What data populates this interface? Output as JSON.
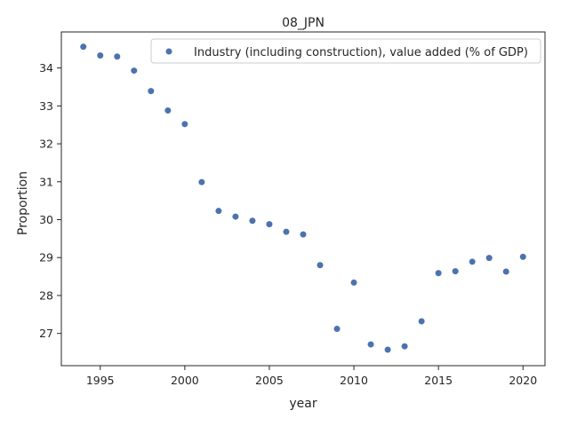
{
  "chart_data": {
    "type": "scatter",
    "title": "08_JPN",
    "xlabel": "year",
    "ylabel": "Proportion",
    "xlim": [
      1992.7,
      2021.3
    ],
    "ylim": [
      26.15,
      34.95
    ],
    "xticks": [
      1995,
      2000,
      2005,
      2010,
      2015,
      2020
    ],
    "yticks": [
      27,
      28,
      29,
      30,
      31,
      32,
      33,
      34
    ],
    "grid": false,
    "legend": "top-right",
    "series": [
      {
        "name": "Industry (including construction), value added (% of GDP)",
        "color": "#4c72b0",
        "x": [
          1994,
          1995,
          1996,
          1997,
          1998,
          1999,
          2000,
          2001,
          2002,
          2003,
          2004,
          2005,
          2006,
          2007,
          2008,
          2009,
          2010,
          2011,
          2012,
          2013,
          2014,
          2015,
          2016,
          2017,
          2018,
          2019,
          2020
        ],
        "y": [
          34.56,
          34.33,
          34.3,
          33.93,
          33.39,
          32.88,
          32.52,
          30.99,
          30.23,
          30.08,
          29.97,
          29.88,
          29.68,
          29.61,
          28.8,
          27.12,
          28.34,
          26.71,
          26.57,
          26.66,
          27.32,
          28.59,
          28.64,
          28.89,
          28.99,
          28.63,
          29.02
        ]
      }
    ]
  }
}
